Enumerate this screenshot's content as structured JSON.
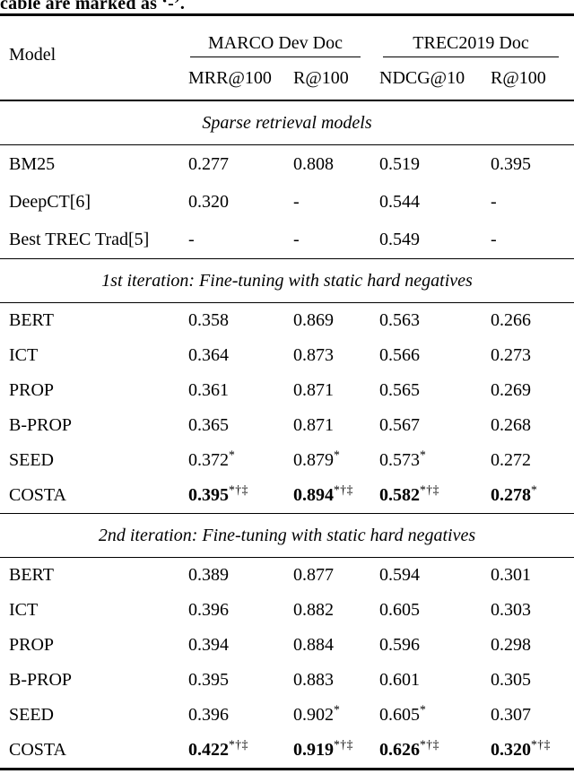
{
  "caption_fragment": "cable are marked as ‘-’.",
  "colors": {
    "text": "#000000",
    "background": "#ffffff",
    "rule": "#000000"
  },
  "table": {
    "header": {
      "model_label": "Model",
      "groups": [
        {
          "label": "MARCO Dev Doc",
          "cols": [
            "MRR@100",
            "R@100"
          ]
        },
        {
          "label": "TREC2019 Doc",
          "cols": [
            "NDCG@10",
            "R@100"
          ]
        }
      ]
    },
    "sections": [
      {
        "title": "Sparse retrieval models",
        "rows": [
          {
            "model": "BM25",
            "c": [
              {
                "v": "0.277"
              },
              {
                "v": "0.808"
              },
              {
                "v": "0.519"
              },
              {
                "v": "0.395"
              }
            ]
          },
          {
            "model": "DeepCT[6]",
            "c": [
              {
                "v": "0.320"
              },
              {
                "v": "-"
              },
              {
                "v": "0.544"
              },
              {
                "v": "-"
              }
            ]
          },
          {
            "model": "Best TREC Trad[5]",
            "c": [
              {
                "v": "-"
              },
              {
                "v": "-"
              },
              {
                "v": "0.549"
              },
              {
                "v": "-"
              }
            ]
          }
        ]
      },
      {
        "title": "1st iteration: Fine-tuning with static hard negatives",
        "rows": [
          {
            "model": "BERT",
            "c": [
              {
                "v": "0.358"
              },
              {
                "v": "0.869"
              },
              {
                "v": "0.563"
              },
              {
                "v": "0.266"
              }
            ]
          },
          {
            "model": "ICT",
            "c": [
              {
                "v": "0.364"
              },
              {
                "v": "0.873"
              },
              {
                "v": "0.566"
              },
              {
                "v": "0.273"
              }
            ]
          },
          {
            "model": "PROP",
            "c": [
              {
                "v": "0.361"
              },
              {
                "v": "0.871"
              },
              {
                "v": "0.565"
              },
              {
                "v": "0.269"
              }
            ]
          },
          {
            "model": "B-PROP",
            "c": [
              {
                "v": "0.365"
              },
              {
                "v": "0.871"
              },
              {
                "v": "0.567"
              },
              {
                "v": "0.268"
              }
            ]
          },
          {
            "model": "SEED",
            "c": [
              {
                "v": "0.372",
                "sup": "*"
              },
              {
                "v": "0.879",
                "sup": "*"
              },
              {
                "v": "0.573",
                "sup": "*"
              },
              {
                "v": "0.272"
              }
            ]
          },
          {
            "model": "COSTA",
            "bold": true,
            "c": [
              {
                "v": "0.395",
                "sup": "*†‡"
              },
              {
                "v": "0.894",
                "sup": "*†‡"
              },
              {
                "v": "0.582",
                "sup": "*†‡"
              },
              {
                "v": "0.278",
                "sup": "*"
              }
            ]
          }
        ]
      },
      {
        "title": "2nd iteration: Fine-tuning with static hard negatives",
        "rows": [
          {
            "model": "BERT",
            "c": [
              {
                "v": "0.389"
              },
              {
                "v": "0.877"
              },
              {
                "v": "0.594"
              },
              {
                "v": "0.301"
              }
            ]
          },
          {
            "model": "ICT",
            "c": [
              {
                "v": "0.396"
              },
              {
                "v": "0.882"
              },
              {
                "v": "0.605"
              },
              {
                "v": "0.303"
              }
            ]
          },
          {
            "model": "PROP",
            "c": [
              {
                "v": "0.394"
              },
              {
                "v": "0.884"
              },
              {
                "v": "0.596"
              },
              {
                "v": "0.298"
              }
            ]
          },
          {
            "model": "B-PROP",
            "c": [
              {
                "v": "0.395"
              },
              {
                "v": "0.883"
              },
              {
                "v": "0.601"
              },
              {
                "v": "0.305"
              }
            ]
          },
          {
            "model": "SEED",
            "c": [
              {
                "v": "0.396"
              },
              {
                "v": "0.902",
                "sup": "*"
              },
              {
                "v": "0.605",
                "sup": "*"
              },
              {
                "v": "0.307"
              }
            ]
          },
          {
            "model": "COSTA",
            "bold": true,
            "c": [
              {
                "v": "0.422",
                "sup": "*†‡"
              },
              {
                "v": "0.919",
                "sup": "*†‡"
              },
              {
                "v": "0.626",
                "sup": "*†‡"
              },
              {
                "v": "0.320",
                "sup": "*†‡"
              }
            ]
          }
        ]
      }
    ]
  }
}
